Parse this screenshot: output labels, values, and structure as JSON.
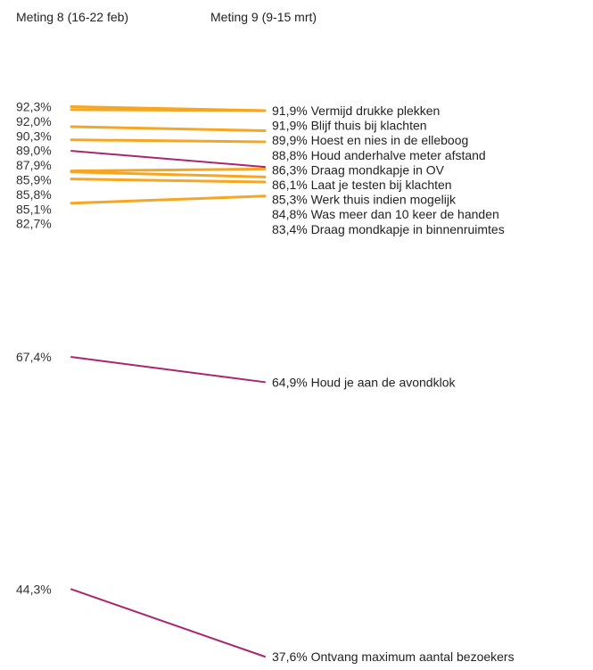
{
  "chart_data": {
    "type": "line",
    "x": [
      "Meting 8 (16-22 feb)",
      "Meting 9 (9-15 mrt)"
    ],
    "colors": {
      "highlight": "#a8276e",
      "default": "#f5a623"
    },
    "ylim": [
      35,
      95
    ],
    "series": [
      {
        "name": "Vermijd drukke plekken",
        "values": [
          92.3,
          91.9
        ],
        "left_label": "92,3%",
        "right_label": "91,9%",
        "color": "default"
      },
      {
        "name": "Blijf thuis bij klachten",
        "values": [
          92.0,
          91.9
        ],
        "left_label": "92,0%",
        "right_label": "91,9%",
        "color": "default"
      },
      {
        "name": "Hoest en nies in de elleboog",
        "values": [
          90.3,
          89.9
        ],
        "left_label": "90,3%",
        "right_label": "89,9%",
        "color": "default"
      },
      {
        "name": "Houd anderhalve meter afstand",
        "values": [
          89.0,
          88.8
        ],
        "left_label": "89,0%",
        "right_label": "88,8%",
        "color": "default"
      },
      {
        "name": "Draag mondkapje in OV",
        "values": [
          87.9,
          86.3
        ],
        "left_label": "87,9%",
        "right_label": "86,3%",
        "color": "highlight"
      },
      {
        "name": "Laat je testen bij klachten",
        "values": [
          85.9,
          86.1
        ],
        "left_label": "85,9%",
        "right_label": "86,1%",
        "color": "default"
      },
      {
        "name": "Werk thuis indien mogelijk",
        "values": [
          85.8,
          85.3
        ],
        "left_label": "85,8%",
        "right_label": "85,3%",
        "color": "default"
      },
      {
        "name": "Was meer dan 10 keer de handen",
        "values": [
          85.1,
          84.8
        ],
        "left_label": "85,1%",
        "right_label": "84,8%",
        "color": "default"
      },
      {
        "name": "Draag mondkapje in binnenruimtes",
        "values": [
          82.7,
          83.4
        ],
        "left_label": "82,7%",
        "right_label": "83,4%",
        "color": "default"
      },
      {
        "name": "Houd je aan de avondklok",
        "values": [
          67.4,
          64.9
        ],
        "left_label": "67,4%",
        "right_label": "64,9%",
        "color": "highlight"
      },
      {
        "name": "Ontvang maximum aantal bezoekers",
        "values": [
          44.3,
          37.6
        ],
        "left_label": "44,3%",
        "right_label": "37,6%",
        "color": "highlight"
      }
    ]
  }
}
